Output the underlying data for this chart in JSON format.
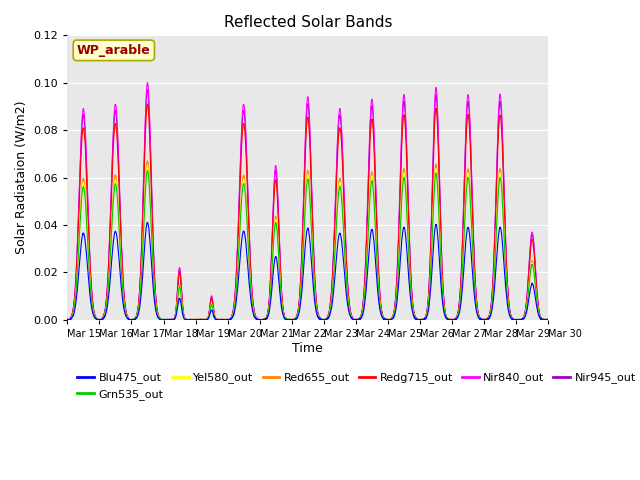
{
  "title": "Reflected Solar Bands",
  "xlabel": "Time",
  "ylabel": "Solar Radiataion (W/m2)",
  "ylim": [
    0,
    0.12
  ],
  "yticks": [
    0.0,
    0.02,
    0.04,
    0.06,
    0.08,
    0.1,
    0.12
  ],
  "xtick_labels": [
    "Mar 15",
    "Mar 16",
    "Mar 17",
    "Mar 18",
    "Mar 19",
    "Mar 20",
    "Mar 21",
    "Mar 22",
    "Mar 23",
    "Mar 24",
    "Mar 25",
    "Mar 26",
    "Mar 27",
    "Mar 28",
    "Mar 29",
    "Mar 30"
  ],
  "annotation_text": "WP_arable",
  "annotation_color": "#990000",
  "annotation_bg": "#ffffcc",
  "bands": [
    {
      "name": "Blu475_out",
      "color": "#0000ff",
      "scale": 0.41
    },
    {
      "name": "Grn535_out",
      "color": "#00cc00",
      "scale": 0.63
    },
    {
      "name": "Yel580_out",
      "color": "#ffff00",
      "scale": 0.65
    },
    {
      "name": "Red655_out",
      "color": "#ff8800",
      "scale": 0.67
    },
    {
      "name": "Redg715_out",
      "color": "#ff0000",
      "scale": 0.91
    },
    {
      "name": "Nir840_out",
      "color": "#ff00ff",
      "scale": 1.0
    },
    {
      "name": "Nir945_out",
      "color": "#9900cc",
      "scale": 0.97
    }
  ],
  "peak_heights": [
    0.089,
    0.091,
    0.1,
    0.022,
    0.01,
    0.091,
    0.065,
    0.094,
    0.089,
    0.093,
    0.095,
    0.098,
    0.095,
    0.095,
    0.037
  ],
  "peak_widths": [
    0.13,
    0.13,
    0.12,
    0.06,
    0.05,
    0.13,
    0.1,
    0.12,
    0.13,
    0.12,
    0.12,
    0.11,
    0.12,
    0.12,
    0.1
  ],
  "background_color": "#e8e8e8",
  "grid_color": "#ffffff",
  "figsize": [
    6.4,
    4.8
  ],
  "dpi": 100
}
